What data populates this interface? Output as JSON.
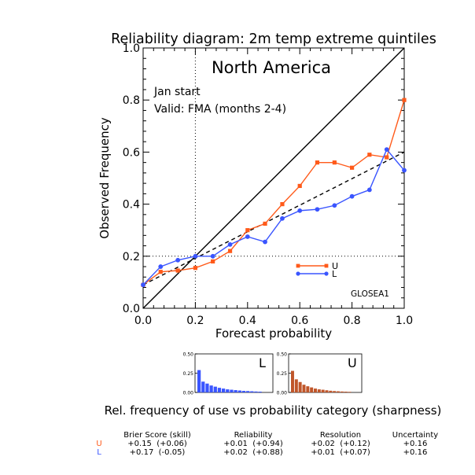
{
  "chart_data": {
    "type": "line",
    "title": "Reliability diagram: 2m temp extreme quintiles",
    "region": "North America",
    "annotation_lines": [
      "Jan start",
      "Valid: FMA (months 2-4)"
    ],
    "xlabel": "Forecast probability",
    "ylabel": "Observed Frequency",
    "xlim": [
      0.0,
      1.0
    ],
    "ylim": [
      0.0,
      1.0
    ],
    "xticks": [
      "0.0",
      "0.2",
      "0.4",
      "0.6",
      "0.8",
      "1.0"
    ],
    "yticks": [
      "0.0",
      "0.2",
      "0.4",
      "0.6",
      "0.8",
      "1.0"
    ],
    "model_label": "GLOSEA1",
    "climatology": {
      "x": 0.2,
      "y": 0.2
    },
    "legend_position": "lower-right",
    "x": [
      0.0,
      0.067,
      0.133,
      0.2,
      0.267,
      0.333,
      0.4,
      0.467,
      0.533,
      0.6,
      0.667,
      0.733,
      0.8,
      0.867,
      0.933,
      1.0
    ],
    "series": [
      {
        "name": "U",
        "color": "#ff5a1a",
        "values": [
          0.09,
          0.14,
          0.145,
          0.155,
          0.18,
          0.22,
          0.3,
          0.325,
          0.4,
          0.47,
          0.56,
          0.56,
          0.54,
          0.59,
          0.58,
          0.8
        ]
      },
      {
        "name": "L",
        "color": "#3a55ff",
        "values": [
          0.09,
          0.16,
          0.185,
          0.2,
          0.2,
          0.245,
          0.275,
          0.255,
          0.345,
          0.375,
          0.38,
          0.395,
          0.43,
          0.455,
          0.61,
          0.53
        ]
      }
    ],
    "fit_line": {
      "x": [
        0.0,
        1.0
      ],
      "y": [
        0.09,
        0.6
      ]
    }
  },
  "sharpness": {
    "caption": "Rel. frequency of use vs probability category (sharpness)",
    "yticks": [
      "0.50",
      "0.25",
      "0.00"
    ],
    "ylim": [
      0,
      0.5
    ],
    "panels": [
      {
        "label": "L",
        "color": "#3a55ff",
        "values": [
          0.29,
          0.14,
          0.115,
          0.09,
          0.075,
          0.06,
          0.05,
          0.04,
          0.035,
          0.03,
          0.025,
          0.02,
          0.018,
          0.015,
          0.012,
          0.01
        ]
      },
      {
        "label": "U",
        "color": "#c0562a",
        "values": [
          0.28,
          0.17,
          0.135,
          0.1,
          0.08,
          0.065,
          0.05,
          0.04,
          0.035,
          0.028,
          0.022,
          0.018,
          0.015,
          0.012,
          0.01,
          0.008
        ]
      }
    ]
  },
  "scores": {
    "headers": [
      "Brier Score (skill)",
      "Reliability",
      "Resolution",
      "Uncertainty"
    ],
    "rows": [
      {
        "label": "U",
        "color": "#ff5a1a",
        "values": [
          "+0.15  (+0.06)",
          "+0.01  (+0.94)",
          "+0.02  (+0.12)",
          "+0.16"
        ]
      },
      {
        "label": "L",
        "color": "#3a55ff",
        "values": [
          "+0.17  (-0.05)",
          "+0.02  (+0.88)",
          "+0.01  (+0.07)",
          "+0.16"
        ]
      }
    ]
  }
}
